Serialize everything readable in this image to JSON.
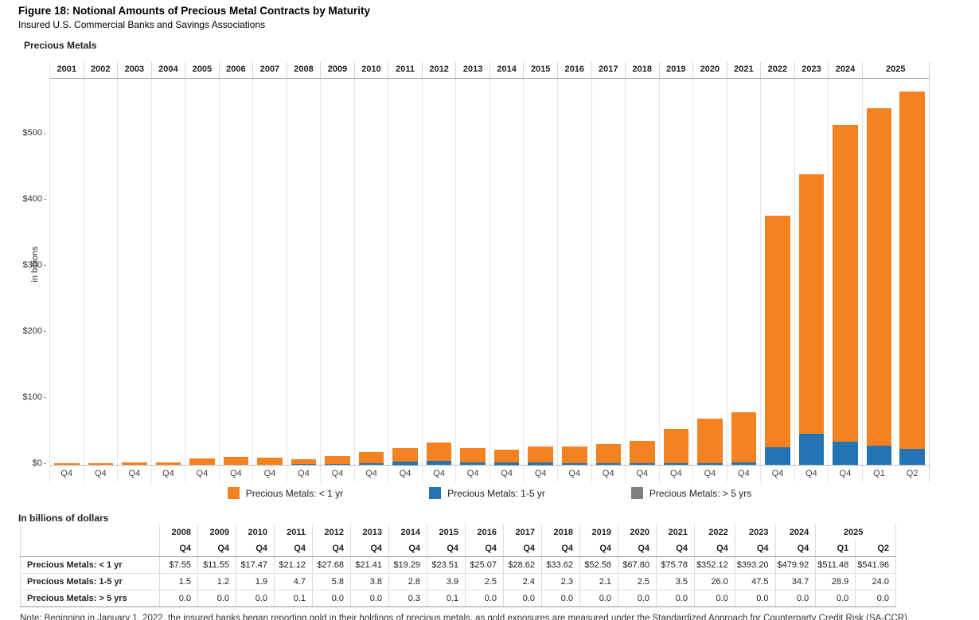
{
  "page": {
    "title": "Figure 18: Notional Amounts of Precious Metal Contracts by Maturity",
    "subtitle": "Insured U.S. Commercial Banks and Savings Associations"
  },
  "chart": {
    "title": "Precious Metals",
    "ylabel": "in billions"
  },
  "chart_data": {
    "type": "bar",
    "stacked": true,
    "title": "Precious Metals",
    "xlabel": "",
    "ylabel": "in billions",
    "ylim": [
      0,
      585
    ],
    "grid": "vertical-only",
    "legend_position": "bottom",
    "y_ticks": {
      "values": [
        0,
        100,
        200,
        300,
        400,
        500
      ],
      "labels": [
        "$0",
        "$100",
        "$200",
        "$300",
        "$400",
        "$500"
      ]
    },
    "categories": [
      "2001 Q4",
      "2002 Q4",
      "2003 Q4",
      "2004 Q4",
      "2005 Q4",
      "2006 Q4",
      "2007 Q4",
      "2008 Q4",
      "2009 Q4",
      "2010 Q4",
      "2011 Q4",
      "2012 Q4",
      "2013 Q4",
      "2014 Q4",
      "2015 Q4",
      "2016 Q4",
      "2017 Q4",
      "2018 Q4",
      "2019 Q4",
      "2020 Q4",
      "2021 Q4",
      "2022 Q4",
      "2023 Q4",
      "2024 Q4",
      "2025 Q1",
      "2025 Q2"
    ],
    "series": [
      {
        "name": "Precious Metals: < 1 yr",
        "color": "#F58220",
        "values": [
          2.5,
          2.5,
          4.0,
          4.0,
          9.5,
          11.5,
          11.0,
          7.55,
          11.55,
          17.47,
          21.12,
          27.68,
          21.41,
          19.29,
          23.51,
          25.07,
          28.62,
          33.62,
          52.58,
          67.8,
          75.78,
          352.12,
          393.2,
          479.92,
          511.48,
          541.96
        ]
      },
      {
        "name": "Precious Metals: 1-5 yr",
        "color": "#2274B5",
        "values": [
          0,
          0,
          0,
          0,
          0,
          0,
          0,
          1.5,
          1.2,
          1.9,
          4.7,
          5.8,
          3.8,
          2.8,
          3.9,
          2.5,
          2.4,
          2.3,
          2.1,
          2.5,
          3.5,
          26.0,
          47.5,
          34.7,
          28.9,
          24.0
        ]
      },
      {
        "name": "Precious Metals: > 5 yrs",
        "color": "#7F7F7F",
        "values": [
          0,
          0,
          0,
          0,
          0,
          0,
          0,
          0.0,
          0.0,
          0.0,
          0.1,
          0.0,
          0.0,
          0.3,
          0.1,
          0.0,
          0.0,
          0.0,
          0.0,
          0.0,
          0.0,
          0.0,
          0.0,
          0.0,
          0.0,
          0.0
        ]
      }
    ]
  },
  "table": {
    "caption": "In billions of dollars",
    "year_headers": [
      {
        "label": "2008",
        "span": 1
      },
      {
        "label": "2009",
        "span": 1
      },
      {
        "label": "2010",
        "span": 1
      },
      {
        "label": "2011",
        "span": 1
      },
      {
        "label": "2012",
        "span": 1
      },
      {
        "label": "2013",
        "span": 1
      },
      {
        "label": "2014",
        "span": 1
      },
      {
        "label": "2015",
        "span": 1
      },
      {
        "label": "2016",
        "span": 1
      },
      {
        "label": "2017",
        "span": 1
      },
      {
        "label": "2018",
        "span": 1
      },
      {
        "label": "2019",
        "span": 1
      },
      {
        "label": "2020",
        "span": 1
      },
      {
        "label": "2021",
        "span": 1
      },
      {
        "label": "2022",
        "span": 1
      },
      {
        "label": "2023",
        "span": 1
      },
      {
        "label": "2024",
        "span": 1
      },
      {
        "label": "2025",
        "span": 2
      }
    ],
    "quarter_headers": [
      "Q4",
      "Q4",
      "Q4",
      "Q4",
      "Q4",
      "Q4",
      "Q4",
      "Q4",
      "Q4",
      "Q4",
      "Q4",
      "Q4",
      "Q4",
      "Q4",
      "Q4",
      "Q4",
      "Q4",
      "Q1",
      "Q2"
    ],
    "rows": [
      {
        "label": "Precious Metals: < 1 yr",
        "values": [
          "$7.55",
          "$11.55",
          "$17.47",
          "$21.12",
          "$27.68",
          "$21.41",
          "$19.29",
          "$23.51",
          "$25.07",
          "$28.62",
          "$33.62",
          "$52.58",
          "$67.80",
          "$75.78",
          "$352.12",
          "$393.20",
          "$479.92",
          "$511.48",
          "$541.96"
        ]
      },
      {
        "label": "Precious Metals: 1-5 yr",
        "values": [
          "1.5",
          "1.2",
          "1.9",
          "4.7",
          "5.8",
          "3.8",
          "2.8",
          "3.9",
          "2.5",
          "2.4",
          "2.3",
          "2.1",
          "2.5",
          "3.5",
          "26.0",
          "47.5",
          "34.7",
          "28.9",
          "24.0"
        ]
      },
      {
        "label": "Precious Metals: > 5 yrs",
        "values": [
          "0.0",
          "0.0",
          "0.0",
          "0.1",
          "0.0",
          "0.0",
          "0.3",
          "0.1",
          "0.0",
          "0.0",
          "0.0",
          "0.0",
          "0.0",
          "0.0",
          "0.0",
          "0.0",
          "0.0",
          "0.0",
          "0.0"
        ]
      }
    ]
  },
  "note": "Note: Beginning in January 1, 2022, the insured banks began reporting gold in their holdings of precious metals, as gold exposures are measured under the Standardized Approach for Counterparty Credit Risk (SA-CCR)."
}
